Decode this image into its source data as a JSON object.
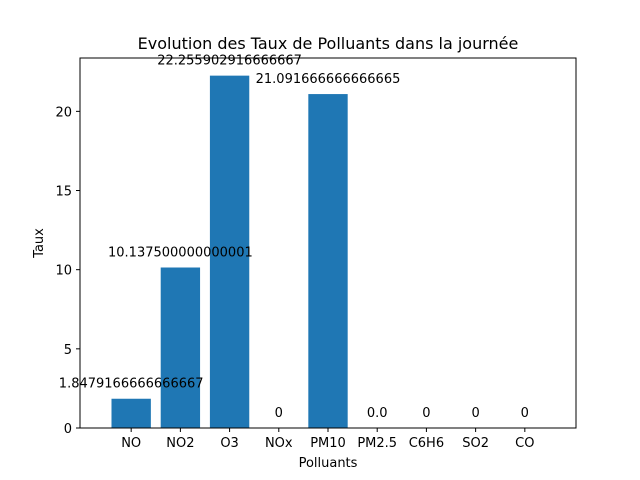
{
  "chart_data": {
    "type": "bar",
    "title": "Evolution des Taux de Polluants dans la journée",
    "xlabel": "Polluants",
    "ylabel": "Taux",
    "categories": [
      "NO",
      "NO2",
      "O3",
      "NOx",
      "PM10",
      "PM2.5",
      "C6H6",
      "SO2",
      "CO"
    ],
    "values": [
      1.8479166666666667,
      10.137500000000001,
      22.255902916666667,
      0,
      21.091666666666665,
      0.0,
      0,
      0,
      0
    ],
    "data_labels": [
      "1.8479166666666667",
      "10.137500000000001",
      "22.255902916666667",
      "0",
      "21.091666666666665",
      "0.0",
      "0",
      "0",
      "0"
    ],
    "ylim": [
      0,
      23.37
    ],
    "yticks": [
      0,
      5,
      10,
      15,
      20
    ],
    "grid": false,
    "bar_color": "#1f77b4"
  }
}
